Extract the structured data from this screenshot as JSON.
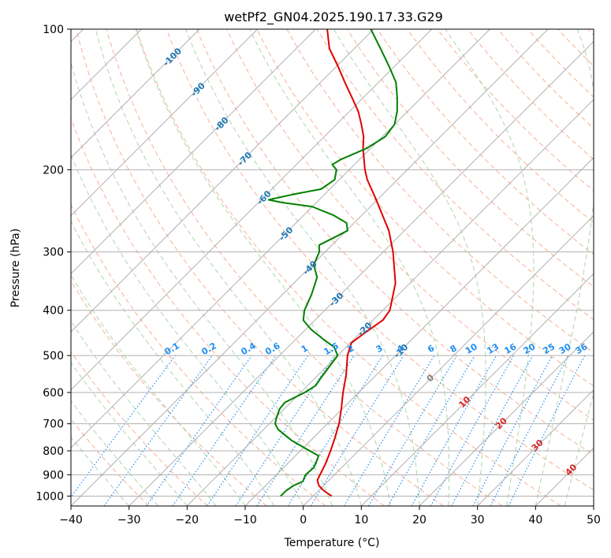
{
  "chart_data": {
    "type": "line",
    "subtype": "skew-T log-P",
    "title": "wetPf2_GN04.2025.190.17.33.G29",
    "xlabel": "Temperature (°C)",
    "ylabel": "Pressure (hPa)",
    "xlim": [
      -40,
      50
    ],
    "ylim": [
      1050,
      100
    ],
    "y_scale": "log",
    "x_ticks": [
      -40,
      -30,
      -20,
      -10,
      0,
      10,
      20,
      30,
      40,
      50
    ],
    "x_tick_labels": [
      "−40",
      "−30",
      "−20",
      "−10",
      "0",
      "10",
      "20",
      "30",
      "40",
      "50"
    ],
    "y_ticks": [
      100,
      200,
      300,
      400,
      500,
      600,
      700,
      800,
      900,
      1000
    ],
    "y_tick_labels": [
      "100",
      "200",
      "300",
      "400",
      "500",
      "600",
      "700",
      "800",
      "900",
      "1000"
    ],
    "grid": true,
    "colors": {
      "temperature": "#e00000",
      "dewpoint": "#008000",
      "grid": "#b0b0b0",
      "dry_adiabat": "#f4a58a",
      "moist_adiabat": "#9fd19f",
      "mixing_ratio": "#1f8ef1",
      "isotherm_label": "#1f77b4",
      "adiabat_label": "#d62728",
      "zero_label": "#808080"
    },
    "series": [
      {
        "role": "temperature",
        "points": [
          [
            1000,
            3.2
          ],
          [
            975,
            1.0
          ],
          [
            950,
            -0.8
          ],
          [
            925,
            -2.0
          ],
          [
            900,
            -2.5
          ],
          [
            850,
            -3.5
          ],
          [
            800,
            -4.8
          ],
          [
            750,
            -6.3
          ],
          [
            700,
            -8.0
          ],
          [
            650,
            -10.2
          ],
          [
            600,
            -12.7
          ],
          [
            550,
            -15.2
          ],
          [
            500,
            -18.3
          ],
          [
            470,
            -19.8
          ],
          [
            450,
            -19.3
          ],
          [
            420,
            -18.3
          ],
          [
            400,
            -18.8
          ],
          [
            350,
            -22.5
          ],
          [
            300,
            -28.3
          ],
          [
            270,
            -32.7
          ],
          [
            250,
            -36.5
          ],
          [
            230,
            -40.6
          ],
          [
            210,
            -45.2
          ],
          [
            200,
            -47.3
          ],
          [
            180,
            -51.3
          ],
          [
            170,
            -53.2
          ],
          [
            160,
            -55.7
          ],
          [
            150,
            -58.5
          ],
          [
            140,
            -62.0
          ],
          [
            130,
            -65.8
          ],
          [
            120,
            -69.8
          ],
          [
            110,
            -74.3
          ],
          [
            100,
            -78.0
          ]
        ]
      },
      {
        "role": "dewpoint",
        "points": [
          [
            1000,
            -5.6
          ],
          [
            975,
            -5.6
          ],
          [
            950,
            -5.2
          ],
          [
            930,
            -4.3
          ],
          [
            900,
            -5.0
          ],
          [
            870,
            -4.8
          ],
          [
            850,
            -5.2
          ],
          [
            820,
            -6.0
          ],
          [
            800,
            -8.4
          ],
          [
            760,
            -13.3
          ],
          [
            720,
            -17.5
          ],
          [
            700,
            -19.0
          ],
          [
            680,
            -19.8
          ],
          [
            650,
            -20.8
          ],
          [
            630,
            -21.0
          ],
          [
            600,
            -19.3
          ],
          [
            580,
            -18.6
          ],
          [
            560,
            -19.0
          ],
          [
            500,
            -20.0
          ],
          [
            480,
            -22.0
          ],
          [
            460,
            -25.5
          ],
          [
            440,
            -29.0
          ],
          [
            420,
            -32.0
          ],
          [
            400,
            -33.5
          ],
          [
            370,
            -35.0
          ],
          [
            340,
            -37.0
          ],
          [
            320,
            -39.7
          ],
          [
            300,
            -41.0
          ],
          [
            290,
            -42.2
          ],
          [
            280,
            -41.0
          ],
          [
            270,
            -39.8
          ],
          [
            260,
            -41.3
          ],
          [
            250,
            -45.0
          ],
          [
            240,
            -50.0
          ],
          [
            235,
            -56.0
          ],
          [
            232,
            -58.7
          ],
          [
            226,
            -55.5
          ],
          [
            220,
            -51.5
          ],
          [
            210,
            -50.8
          ],
          [
            200,
            -52.2
          ],
          [
            195,
            -53.8
          ],
          [
            190,
            -53.2
          ],
          [
            180,
            -50.7
          ],
          [
            170,
            -49.5
          ],
          [
            160,
            -50.0
          ],
          [
            150,
            -51.8
          ],
          [
            140,
            -54.2
          ],
          [
            130,
            -57.0
          ],
          [
            120,
            -61.0
          ],
          [
            110,
            -65.5
          ],
          [
            100,
            -70.5
          ]
        ]
      }
    ],
    "isotherm_labels": [
      "-100",
      "-90",
      "-80",
      "-70",
      "-60",
      "-50",
      "-40",
      "-30",
      "-20",
      "-10",
      "0",
      "10",
      "20",
      "30",
      "40"
    ],
    "mixing_ratio_labels": [
      "0.1",
      "0.2",
      "0.4",
      "0.6",
      "1",
      "1.5",
      "2",
      "3",
      "4",
      "6",
      "8",
      "10",
      "13",
      "16",
      "20",
      "25",
      "30",
      "36"
    ]
  }
}
